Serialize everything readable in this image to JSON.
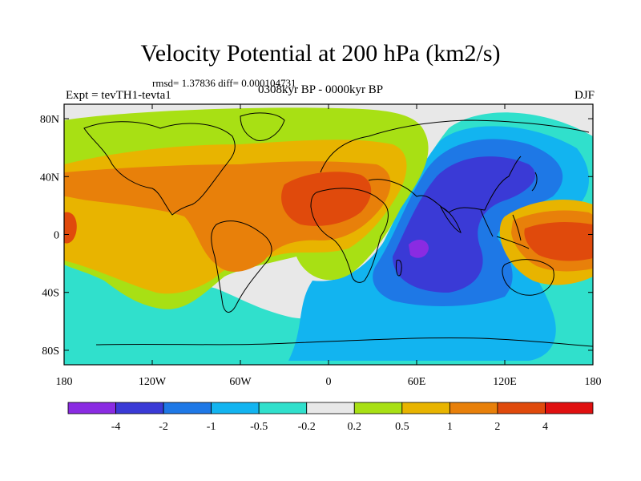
{
  "title": "Velocity Potential at 200 hPa (km2/s)",
  "stats": "rmsd= 1.37836 diff= 0.000104731",
  "expt": "Expt = tevTH1-tevta1",
  "period": "0308kyr BP - 0000kyr BP",
  "season": "DJF",
  "map": {
    "lat_ticks": [
      {
        "value": 80,
        "label": "80N"
      },
      {
        "value": 40,
        "label": "40N"
      },
      {
        "value": 0,
        "label": "0"
      },
      {
        "value": -40,
        "label": "40S"
      },
      {
        "value": -80,
        "label": "80S"
      }
    ],
    "lon_ticks": [
      {
        "value": -180,
        "label": "180"
      },
      {
        "value": -120,
        "label": "120W"
      },
      {
        "value": -60,
        "label": "60W"
      },
      {
        "value": 0,
        "label": "0"
      },
      {
        "value": 60,
        "label": "60E"
      },
      {
        "value": 120,
        "label": "120E"
      },
      {
        "value": 180,
        "label": "180"
      }
    ]
  },
  "colorbar": {
    "colors": [
      "#8a2be2",
      "#3a3ad6",
      "#1e78e6",
      "#12b4f0",
      "#30e0cc",
      "#e8e8e8",
      "#a8e014",
      "#e8b400",
      "#e8800a",
      "#e04a0c",
      "#e01010"
    ],
    "labels": [
      "-4",
      "-2",
      "-1",
      "-0.5",
      "-0.2",
      "0.2",
      "0.5",
      "1",
      "2",
      "4"
    ]
  }
}
